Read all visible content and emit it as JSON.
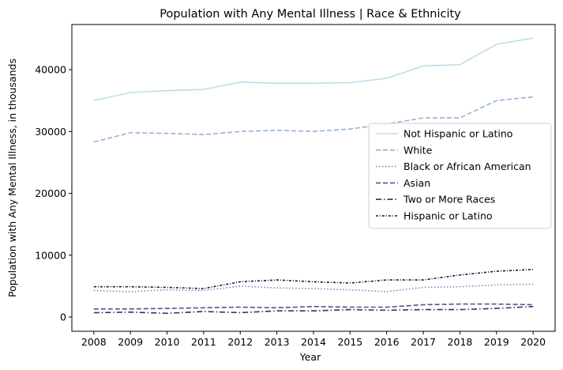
{
  "chart_data": {
    "type": "line",
    "title": "Population with Any Mental Illness | Race & Ethnicity",
    "xlabel": "Year",
    "ylabel": "Population with Any Mental Illness, in thousands",
    "x": [
      2008,
      2009,
      2010,
      2011,
      2012,
      2013,
      2014,
      2015,
      2016,
      2017,
      2018,
      2019,
      2020
    ],
    "ylim": [
      -2300,
      47300
    ],
    "yticks": [
      0,
      10000,
      20000,
      30000,
      40000
    ],
    "grid": false,
    "legend_position": "center-right",
    "series": [
      {
        "name": "Not Hispanic or Latino",
        "color": "#c0dceb",
        "dash": "solid",
        "values": [
          35000,
          36300,
          36600,
          36800,
          38000,
          37800,
          37800,
          37900,
          38600,
          40600,
          40800,
          44100,
          45100
        ]
      },
      {
        "name": "White",
        "color": "#94b4d6",
        "dash": "dashed",
        "values": [
          28300,
          29800,
          29700,
          29500,
          30000,
          30200,
          30000,
          30400,
          31200,
          32200,
          32200,
          35000,
          35600
        ]
      },
      {
        "name": "Black or African American",
        "color": "#7b86c4",
        "dash": "dotted",
        "values": [
          4300,
          4100,
          4400,
          4300,
          5000,
          4700,
          4600,
          4400,
          4100,
          4800,
          4900,
          5200,
          5300
        ]
      },
      {
        "name": "Asian",
        "color": "#4b5690",
        "dash": "dashed",
        "values": [
          1300,
          1300,
          1400,
          1500,
          1600,
          1500,
          1700,
          1600,
          1600,
          2000,
          2100,
          2100,
          2000
        ]
      },
      {
        "name": "Two or More Races",
        "color": "#3a2f5e",
        "dash": "dashdot",
        "values": [
          700,
          800,
          600,
          900,
          700,
          1000,
          1000,
          1200,
          1100,
          1200,
          1200,
          1400,
          1700
        ]
      },
      {
        "name": "Hispanic or Latino",
        "color": "#1c1424",
        "dash": "densedot",
        "values": [
          4900,
          4900,
          4800,
          4600,
          5700,
          6000,
          5700,
          5500,
          6000,
          6000,
          6800,
          7400,
          7700
        ]
      }
    ]
  }
}
